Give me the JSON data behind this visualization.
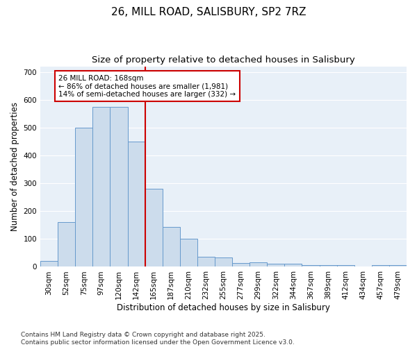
{
  "title_line1": "26, MILL ROAD, SALISBURY, SP2 7RZ",
  "title_line2": "Size of property relative to detached houses in Salisbury",
  "xlabel": "Distribution of detached houses by size in Salisbury",
  "ylabel": "Number of detached properties",
  "footnote": "Contains HM Land Registry data © Crown copyright and database right 2025.\nContains public sector information licensed under the Open Government Licence v3.0.",
  "bar_labels": [
    "30sqm",
    "52sqm",
    "75sqm",
    "97sqm",
    "120sqm",
    "142sqm",
    "165sqm",
    "187sqm",
    "210sqm",
    "232sqm",
    "255sqm",
    "277sqm",
    "299sqm",
    "322sqm",
    "344sqm",
    "367sqm",
    "389sqm",
    "412sqm",
    "434sqm",
    "457sqm",
    "479sqm"
  ],
  "bar_heights": [
    22,
    160,
    500,
    575,
    575,
    450,
    280,
    143,
    100,
    35,
    33,
    14,
    15,
    12,
    10,
    5,
    5,
    7,
    0,
    5,
    5
  ],
  "bar_color": "#ccdcec",
  "bar_edgecolor": "#6699cc",
  "vline_color": "#cc0000",
  "annotation_text": "26 MILL ROAD: 168sqm\n← 86% of detached houses are smaller (1,981)\n14% of semi-detached houses are larger (332) →",
  "annotation_box_facecolor": "#ffffff",
  "annotation_box_edgecolor": "#cc0000",
  "ylim": [
    0,
    720
  ],
  "yticks": [
    0,
    100,
    200,
    300,
    400,
    500,
    600,
    700
  ],
  "background_color": "#e8f0f8",
  "grid_color": "#ffffff",
  "title_fontsize": 11,
  "subtitle_fontsize": 9.5,
  "axis_label_fontsize": 8.5,
  "tick_fontsize": 7.5,
  "annotation_fontsize": 7.5,
  "footnote_fontsize": 6.5
}
